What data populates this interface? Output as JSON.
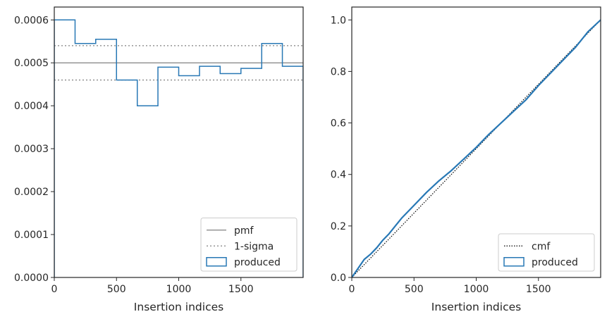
{
  "chart_data": [
    {
      "type": "line",
      "xlabel": "Insertion indices",
      "ylabel": "",
      "xlim": [
        0,
        2000
      ],
      "ylim": [
        0,
        0.00063
      ],
      "xticks": [
        0,
        500,
        1000,
        1500
      ],
      "xtick_labels": [
        "0",
        "500",
        "1000",
        "1500"
      ],
      "yticks": [
        0,
        0.0001,
        0.0002,
        0.0003,
        0.0004,
        0.0005,
        0.0006
      ],
      "ytick_labels": [
        "0.0000",
        "0.0001",
        "0.0002",
        "0.0003",
        "0.0004",
        "0.0005",
        "0.0006"
      ],
      "legend_position": "bottom-right",
      "series": [
        {
          "name": "pmf",
          "style": "solid",
          "color": "#808080",
          "y": 0.0005
        },
        {
          "name": "1-sigma",
          "style": "dotted",
          "color": "#808080",
          "y": [
            0.00046,
            0.00054
          ]
        },
        {
          "name": "produced",
          "style": "step",
          "color": "#2878b5",
          "bin_edges": [
            0,
            167,
            333,
            500,
            667,
            833,
            1000,
            1167,
            1333,
            1500,
            1667,
            1833,
            2000
          ],
          "values": [
            0.0006,
            0.000545,
            0.000555,
            0.00046,
            0.0004,
            0.00049,
            0.00047,
            0.000492,
            0.000475,
            0.000487,
            0.000545,
            0.000492
          ]
        }
      ]
    },
    {
      "type": "line",
      "xlabel": "Insertion indices",
      "ylabel": "",
      "xlim": [
        0,
        2000
      ],
      "ylim": [
        0,
        1.05
      ],
      "xticks": [
        0,
        500,
        1000,
        1500
      ],
      "xtick_labels": [
        "0",
        "500",
        "1000",
        "1500"
      ],
      "yticks": [
        0,
        0.2,
        0.4,
        0.6,
        0.8,
        1.0
      ],
      "ytick_labels": [
        "0.0",
        "0.2",
        "0.4",
        "0.6",
        "0.8",
        "1.0"
      ],
      "legend_position": "bottom-right",
      "series": [
        {
          "name": "cmf",
          "style": "dotted",
          "color": "#000000",
          "x": [
            0,
            2000
          ],
          "y": [
            0,
            1.0
          ]
        },
        {
          "name": "produced",
          "style": "step",
          "color": "#2878b5",
          "x": [
            0,
            50,
            100,
            150,
            200,
            250,
            300,
            350,
            400,
            450,
            500,
            600,
            700,
            800,
            900,
            1000,
            1100,
            1200,
            1300,
            1400,
            1500,
            1600,
            1700,
            1800,
            1900,
            2000
          ],
          "y": [
            0,
            0.035,
            0.07,
            0.09,
            0.115,
            0.145,
            0.17,
            0.2,
            0.23,
            0.255,
            0.28,
            0.33,
            0.375,
            0.415,
            0.46,
            0.505,
            0.555,
            0.6,
            0.645,
            0.69,
            0.745,
            0.795,
            0.845,
            0.895,
            0.955,
            1.0
          ]
        }
      ]
    }
  ]
}
